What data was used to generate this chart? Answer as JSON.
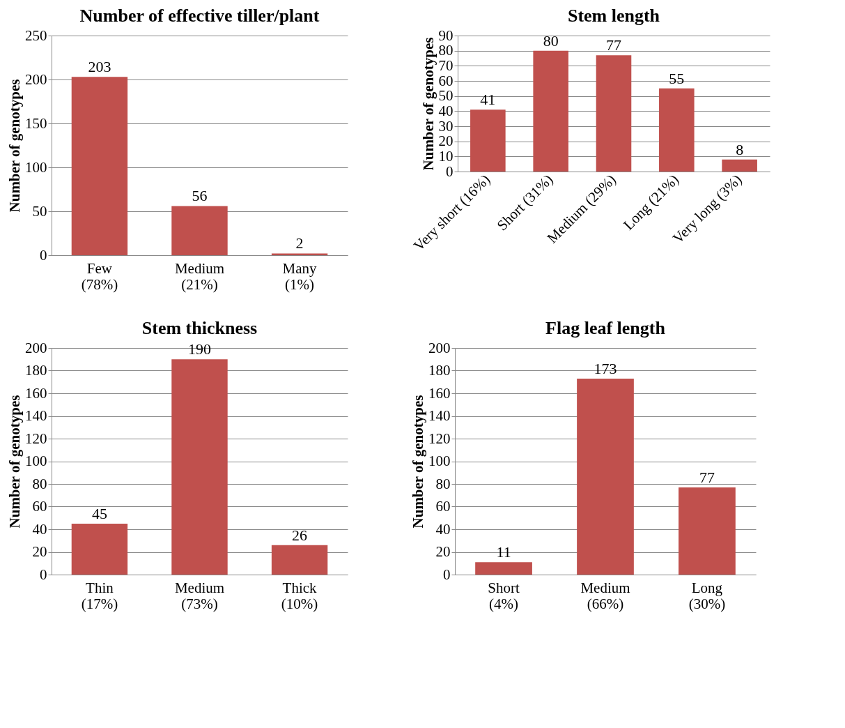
{
  "chart_data": [
    {
      "type": "bar",
      "title": "Number of effective tiller/plant",
      "ylabel": "Number of genotypes",
      "categories": [
        "Few\n(78%)",
        "Medium\n(21%)",
        "Many\n(1%)"
      ],
      "values": [
        203,
        56,
        2
      ],
      "color": "#c0504d",
      "ylim": [
        0,
        250
      ],
      "yticks": [
        0,
        50,
        100,
        150,
        200,
        250
      ],
      "grid": "y",
      "data_labels": true
    },
    {
      "type": "bar",
      "title": "Stem length",
      "ylabel": "Number of genotypes",
      "categories": [
        "Very short (16%)",
        "Short (31%)",
        "Medium (29%)",
        "Long (21%)",
        "Very long (3%)"
      ],
      "values": [
        41,
        80,
        77,
        55,
        8
      ],
      "color": "#c0504d",
      "ylim": [
        0,
        90
      ],
      "yticks": [
        0,
        10,
        20,
        30,
        40,
        50,
        60,
        70,
        80,
        90
      ],
      "grid": "y",
      "data_labels": true
    },
    {
      "type": "bar",
      "title": "Stem thickness",
      "ylabel": "Number of genotypes",
      "categories": [
        "Thin\n(17%)",
        "Medium\n(73%)",
        "Thick\n(10%)"
      ],
      "values": [
        45,
        190,
        26
      ],
      "color": "#c0504d",
      "ylim": [
        0,
        200
      ],
      "yticks": [
        0,
        20,
        40,
        60,
        80,
        100,
        120,
        140,
        160,
        180,
        200
      ],
      "grid": "y",
      "data_labels": true
    },
    {
      "type": "bar",
      "title": "Flag leaf length",
      "ylabel": "Number of genotypes",
      "categories": [
        "Short\n(4%)",
        "Medium\n(66%)",
        "Long\n(30%)"
      ],
      "values": [
        11,
        173,
        77
      ],
      "color": "#c0504d",
      "ylim": [
        0,
        200
      ],
      "yticks": [
        0,
        20,
        40,
        60,
        80,
        100,
        120,
        140,
        160,
        180,
        200
      ],
      "grid": "y",
      "data_labels": true
    }
  ]
}
